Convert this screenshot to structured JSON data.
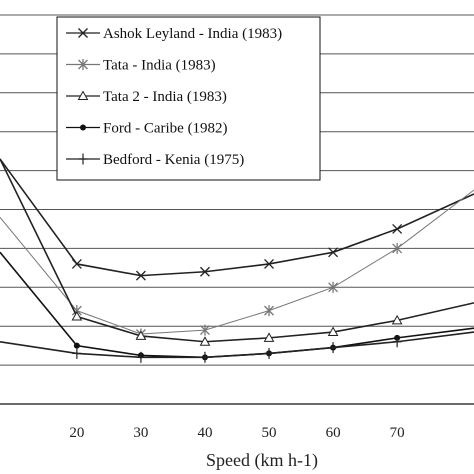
{
  "chart_data": {
    "type": "line",
    "xlabel": "Speed  (km h-1)",
    "ylabel": "",
    "title": "",
    "x_ticks": [
      20,
      30,
      40,
      50,
      60,
      70
    ],
    "xlim": [
      8,
      82
    ],
    "ylim": [
      0,
      10
    ],
    "grid": "horizontal",
    "legend_placement": "top-center",
    "series": [
      {
        "name": "Ashok Leyland - India (1983)",
        "marker": "x",
        "color": "#222222",
        "x": [
          8,
          20,
          30,
          40,
          50,
          60,
          70,
          82
        ],
        "y": [
          6.3,
          3.6,
          3.3,
          3.4,
          3.6,
          3.9,
          4.5,
          5.4
        ]
      },
      {
        "name": "Tata - India (1983)",
        "marker": "asterisk",
        "color": "#777777",
        "x": [
          8,
          20,
          30,
          40,
          50,
          60,
          70,
          82
        ],
        "y": [
          4.8,
          2.4,
          1.8,
          1.9,
          2.4,
          3.0,
          4.0,
          5.5
        ]
      },
      {
        "name": "Tata 2 - India (1983)",
        "marker": "triangle",
        "color": "#222222",
        "x": [
          8,
          20,
          30,
          40,
          50,
          60,
          70,
          82
        ],
        "y": [
          6.3,
          2.25,
          1.75,
          1.6,
          1.7,
          1.85,
          2.15,
          2.6
        ]
      },
      {
        "name": "Ford - Caribe (1982)",
        "marker": "dot",
        "color": "#111111",
        "x": [
          8,
          20,
          30,
          40,
          50,
          60,
          70,
          82
        ],
        "y": [
          3.9,
          1.5,
          1.25,
          1.2,
          1.3,
          1.45,
          1.7,
          1.95
        ]
      },
      {
        "name": "Bedford - Kenia (1975)",
        "marker": "plus",
        "color": "#222222",
        "x": [
          8,
          20,
          30,
          40,
          50,
          60,
          70,
          82
        ],
        "y": [
          1.6,
          1.3,
          1.2,
          1.2,
          1.3,
          1.45,
          1.6,
          1.85
        ]
      }
    ]
  }
}
